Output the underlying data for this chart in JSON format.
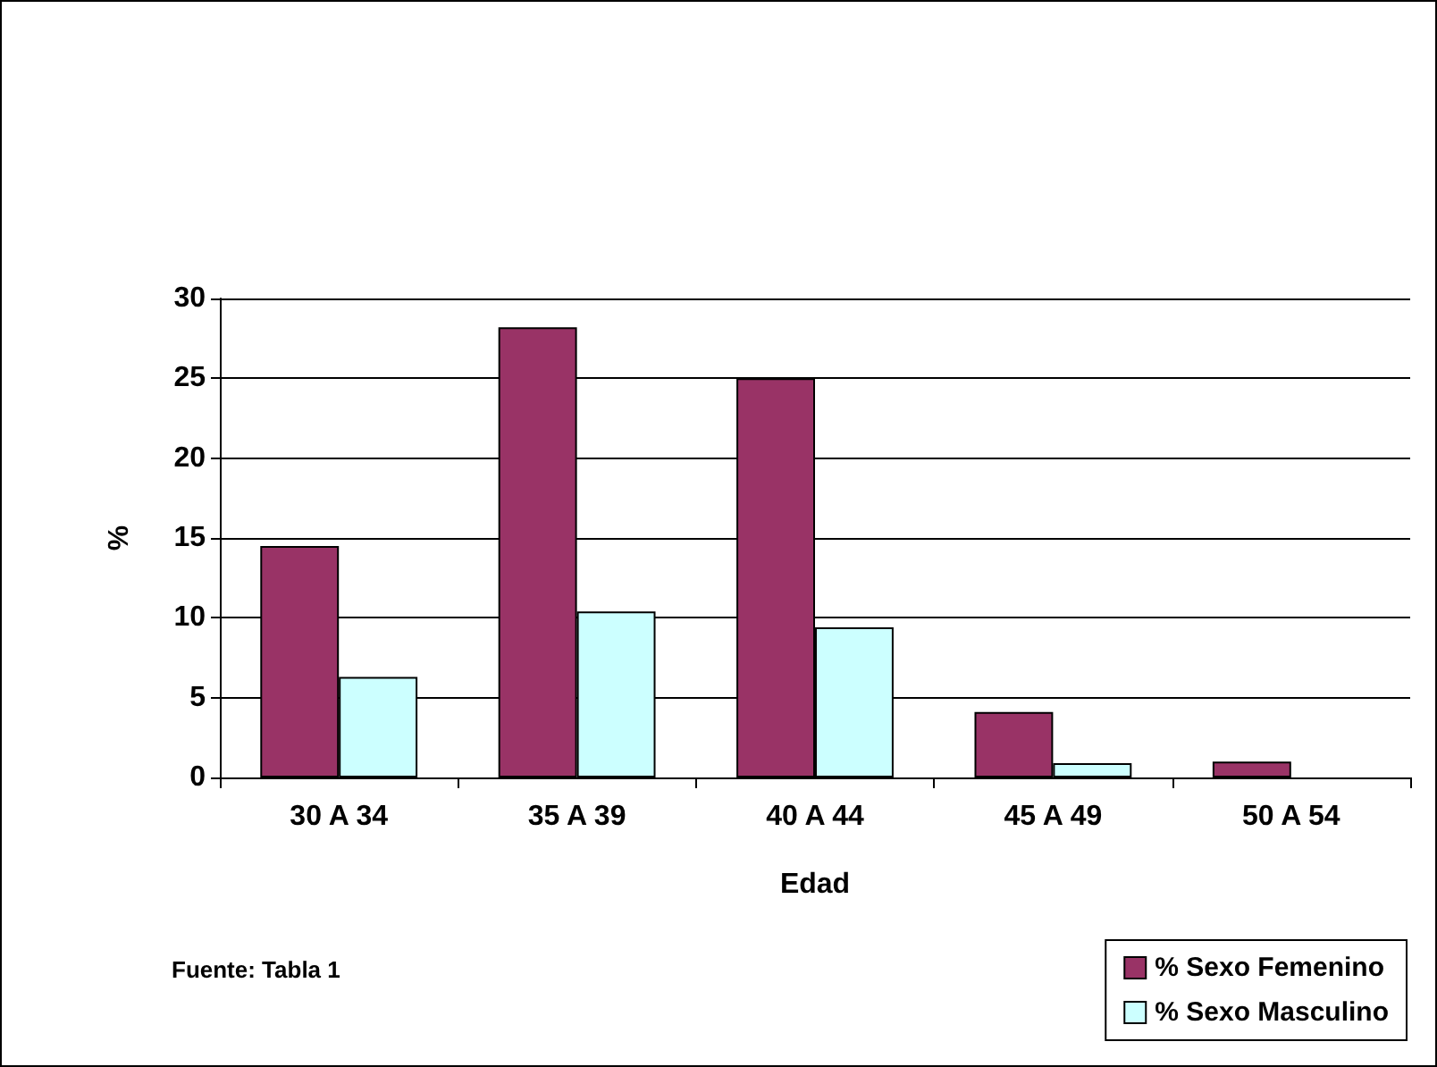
{
  "chart_data": {
    "type": "bar",
    "xlabel": "Edad",
    "ylabel": "%",
    "categories": [
      "30 A 34",
      "35 A 39",
      "40 A 44",
      "45 A 49",
      "50 A 54"
    ],
    "series": [
      {
        "name": "% Sexo Femenino",
        "color": "#993366",
        "values": [
          14.5,
          28.2,
          25,
          4.1,
          1.0
        ]
      },
      {
        "name": "% Sexo Masculino",
        "color": "#ccffff",
        "values": [
          6.3,
          10.4,
          9.4,
          0.9,
          null
        ]
      }
    ],
    "ylim": [
      0,
      30
    ],
    "yticks": [
      0,
      5,
      10,
      15,
      20,
      25,
      30
    ],
    "grid": "y",
    "legend": "bottom right",
    "annotations": [
      "Fuente: Tabla 1"
    ]
  }
}
